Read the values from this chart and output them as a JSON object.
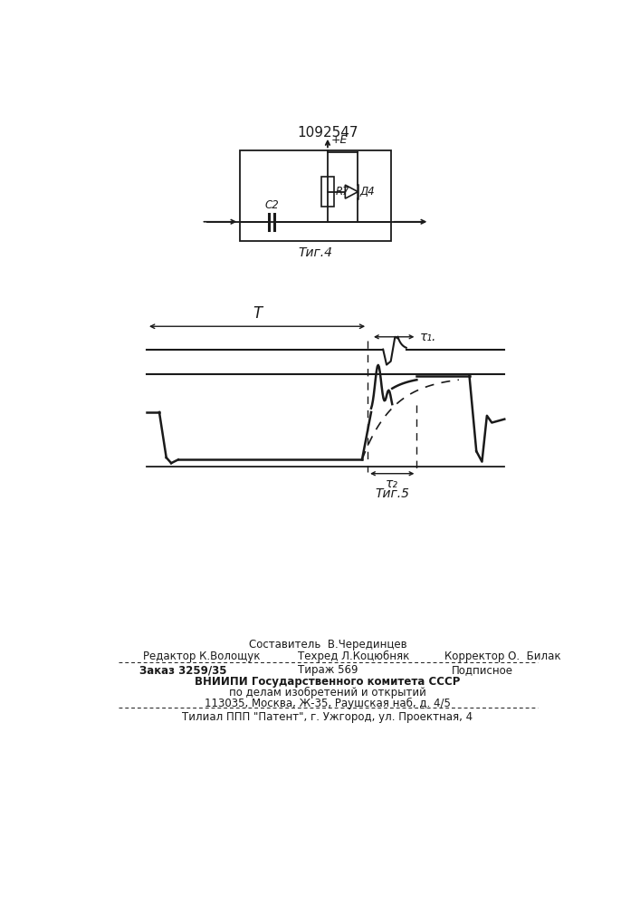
{
  "title": "1092547",
  "fig4_label": "Τиг.4",
  "fig5_label": "Τиг.5",
  "circuit_labels": {
    "plus_e": "+E",
    "r7": "R7",
    "d4": "Д4",
    "c2": "C2"
  },
  "timing_labels": {
    "T": "T",
    "tau1": "τ₁.",
    "tau2": "τ₂"
  },
  "footer_line1": "Составитель  В.Черединцев",
  "footer_line2_left": "Редактор К.Волощук",
  "footer_line2_mid": "Техред Л.Коцюбняк",
  "footer_line2_right": "Корректор О.  Билак",
  "footer_line3_left": "Заказ 3259/35",
  "footer_line3_mid": "Тираж 569",
  "footer_line3_right": "Подписное",
  "footer_line4": "ВНИИПИ Государственного комитета СССР",
  "footer_line5": "по делам изобретений и открытий",
  "footer_line6": "113035, Москва, Ж-35, Раушская наб, д. 4/5",
  "footer_line7": "Τилиал ППП \"Патент\", г. Ужгород, ул. Проектная, 4",
  "bg_color": "#ffffff",
  "line_color": "#1a1a1a"
}
